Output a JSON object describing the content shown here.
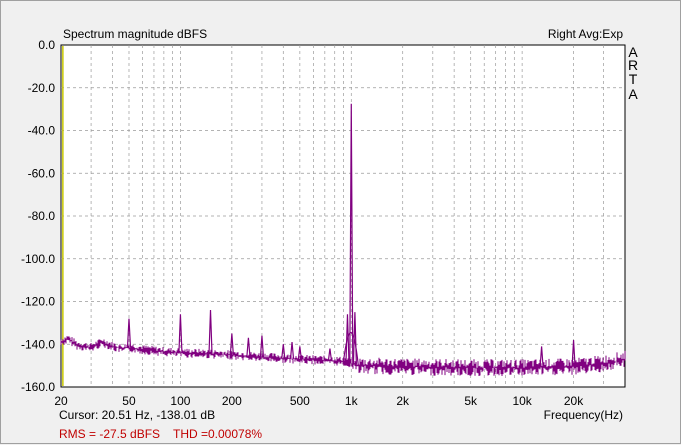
{
  "chart_data": {
    "type": "line",
    "title": "Spectrum magnitude dBFS",
    "subtitle": "Right Avg:Exp",
    "xlabel": "Frequency(Hz)",
    "ylabel": "",
    "xscale": "log",
    "xlim": [
      20,
      40000
    ],
    "ylim": [
      -160,
      0
    ],
    "grid": true,
    "y_ticks": [
      "0.0",
      "-20.0",
      "-40.0",
      "-60.0",
      "-80.0",
      "-100.0",
      "-120.0",
      "-140.0",
      "-160.0"
    ],
    "x_ticks": [
      "20",
      "50",
      "100",
      "200",
      "500",
      "1k",
      "2k",
      "5k",
      "10k",
      "20k"
    ],
    "series": [
      {
        "color": "#800080",
        "floor": [
          [
            20,
            -139
          ],
          [
            22,
            -137.5
          ],
          [
            25,
            -140.5
          ],
          [
            30,
            -141.5
          ],
          [
            35,
            -139
          ],
          [
            40,
            -141
          ],
          [
            45,
            -142
          ],
          [
            50,
            -141.5
          ],
          [
            60,
            -142.5
          ],
          [
            70,
            -143
          ],
          [
            80,
            -143.5
          ],
          [
            100,
            -144
          ],
          [
            150,
            -144.5
          ],
          [
            200,
            -145
          ],
          [
            300,
            -146
          ],
          [
            500,
            -147
          ],
          [
            700,
            -147.5
          ],
          [
            900,
            -148
          ],
          [
            1100,
            -150
          ],
          [
            2000,
            -150.5
          ],
          [
            5000,
            -151
          ],
          [
            10000,
            -151
          ],
          [
            20000,
            -150.5
          ],
          [
            30000,
            -149
          ],
          [
            40000,
            -147
          ]
        ],
        "peaks": [
          [
            50,
            -128
          ],
          [
            100,
            -126
          ],
          [
            150,
            -124
          ],
          [
            200,
            -135
          ],
          [
            250,
            -137
          ],
          [
            300,
            -136
          ],
          [
            400,
            -140
          ],
          [
            450,
            -139
          ],
          [
            500,
            -141
          ],
          [
            750,
            -142
          ],
          [
            950,
            -126
          ],
          [
            1000,
            -27.5
          ],
          [
            1050,
            -125
          ],
          [
            13000,
            -141
          ],
          [
            20000,
            -138
          ]
        ]
      }
    ],
    "cursor_line": {
      "x": 20.51,
      "color": "#c8c800"
    }
  },
  "side_label": [
    "A",
    "R",
    "T",
    "A"
  ],
  "cursor_text": "Cursor: 20.51 Hz, -138.01 dB",
  "rms_text": "RMS =  -27.5 dBFS",
  "thd_text": "THD =0.00078%"
}
